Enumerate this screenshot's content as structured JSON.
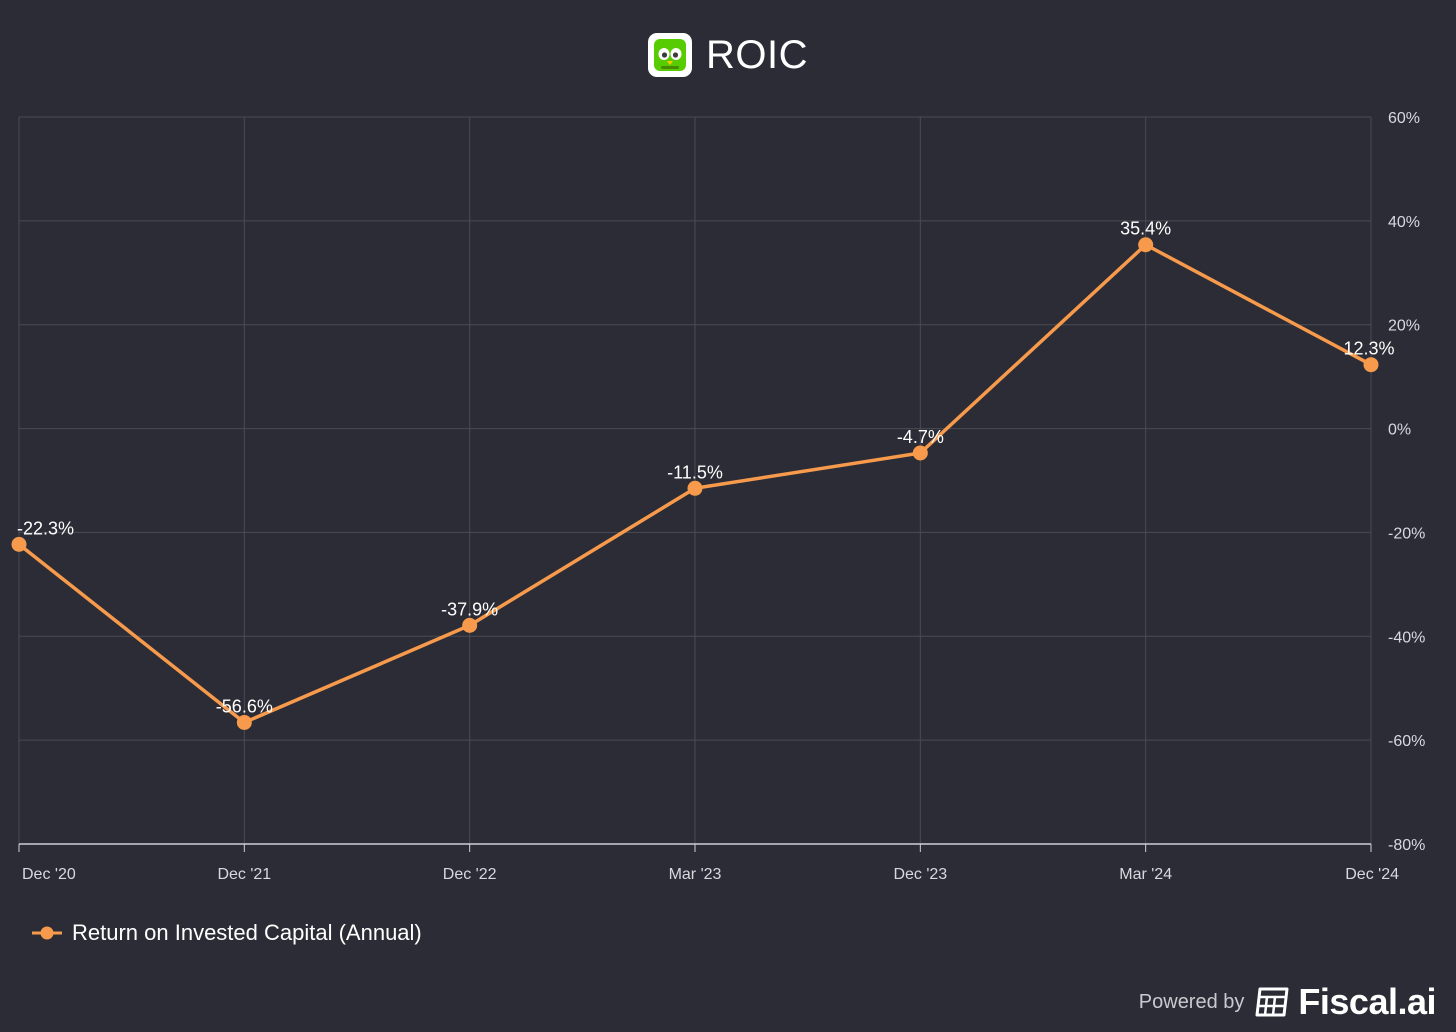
{
  "chart_data": {
    "type": "line",
    "title": "ROIC",
    "categories": [
      "Dec '20",
      "Dec '21",
      "Dec '22",
      "Mar '23",
      "Dec '23",
      "Mar '24",
      "Dec '24"
    ],
    "series": [
      {
        "name": "Return on Invested Capital (Annual)",
        "values": [
          -22.3,
          -56.6,
          -37.9,
          -11.5,
          -4.7,
          35.4,
          12.3
        ],
        "labels": [
          "-22.3%",
          "-56.6%",
          "-37.9%",
          "-11.5%",
          "-4.7%",
          "35.4%",
          "12.3%"
        ],
        "color": "#f79a4c"
      }
    ],
    "y_axis": {
      "position": "right",
      "ylim": [
        -80,
        60
      ],
      "ticks": [
        60,
        40,
        20,
        0,
        -20,
        -40,
        -60,
        -80
      ],
      "tick_labels": [
        "60%",
        "40%",
        "20%",
        "0%",
        "-20%",
        "-40%",
        "-60%",
        "-80%"
      ]
    },
    "grid": true,
    "legend": {
      "placement": "bottom-left"
    }
  },
  "logo": {
    "icon": "duolingo-owl-icon",
    "color": "#58cc02"
  },
  "brand": {
    "prefix": "Powered by",
    "name": "Fiscal.ai",
    "icon": "fiscal-ai-logo-icon"
  },
  "colors": {
    "background": "#2b2c35",
    "grid": "#4a4b55",
    "axis": "#cfcfd6",
    "series": "#f79a4c"
  }
}
